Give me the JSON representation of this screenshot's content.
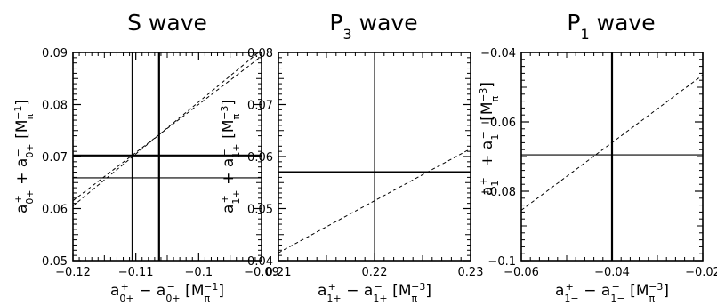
{
  "chart_data": [
    {
      "type": "line",
      "title": "S wave",
      "xlabel": "a0+⁺ − a0+⁻ [Mπ⁻¹]",
      "ylabel": "a0+⁺ + a0+⁻ [Mπ⁻¹]",
      "xlim": [
        -0.12,
        -0.09
      ],
      "ylim": [
        0.05,
        0.09
      ],
      "xticks": [
        -0.12,
        -0.11,
        -0.1,
        -0.09
      ],
      "xtick_labels": [
        "−0.12",
        "−0.11",
        "−0.1",
        "−0.09"
      ],
      "yticks": [
        0.05,
        0.06,
        0.07,
        0.08,
        0.09
      ],
      "ytick_labels": [
        "0.05",
        "0.06",
        "0.07",
        "0.08",
        "0.09"
      ],
      "vlines": [
        {
          "x": -0.1106,
          "style": "thin"
        },
        {
          "x": -0.1063,
          "style": "thick"
        }
      ],
      "hlines": [
        {
          "y": 0.0702,
          "style": "thick"
        },
        {
          "y": 0.0659,
          "style": "thin"
        }
      ],
      "dashed": [
        {
          "x": [
            -0.12,
            -0.09
          ],
          "y": [
            0.0615,
            0.0893
          ]
        },
        {
          "x": [
            -0.12,
            -0.0905
          ],
          "y": [
            0.0605,
            0.09
          ]
        }
      ]
    },
    {
      "type": "line",
      "title": "P3 wave",
      "xlabel": "a1+⁺ − a1+⁻ [Mπ⁻³]",
      "ylabel": "a1+⁺ + a1+⁻ [Mπ⁻³]",
      "xlim": [
        0.21,
        0.23
      ],
      "ylim": [
        0.04,
        0.08
      ],
      "xticks": [
        0.21,
        0.22,
        0.23
      ],
      "xtick_labels": [
        "0.21",
        "0.22",
        "0.23"
      ],
      "yticks": [
        0.04,
        0.05,
        0.06,
        0.07,
        0.08
      ],
      "ytick_labels": [
        "0.04",
        "0.05",
        "0.06",
        "0.07",
        "0.08"
      ],
      "vlines": [
        {
          "x": 0.22,
          "style": "thin"
        }
      ],
      "hlines": [
        {
          "y": 0.057,
          "style": "thick"
        }
      ],
      "dashed": [
        {
          "x": [
            0.21,
            0.23
          ],
          "y": [
            0.0415,
            0.0615
          ]
        }
      ]
    },
    {
      "type": "line",
      "title": "P1 wave",
      "xlabel": "a1−⁺ − a1−⁻ [Mπ⁻³]",
      "ylabel": "a1−⁺ + a1−⁻ [Mπ⁻³]",
      "xlim": [
        -0.06,
        -0.02
      ],
      "ylim": [
        -0.1,
        -0.04
      ],
      "xticks": [
        -0.06,
        -0.04,
        -0.02
      ],
      "xtick_labels": [
        "−0.06",
        "−0.04",
        "−0.02"
      ],
      "yticks": [
        -0.1,
        -0.08,
        -0.06,
        -0.04
      ],
      "ytick_labels": [
        "−0.1",
        "−0.08",
        "−0.06",
        "−0.04"
      ],
      "vlines": [
        {
          "x": -0.04,
          "style": "thick"
        }
      ],
      "hlines": [
        {
          "y": -0.0695,
          "style": "thin"
        }
      ],
      "dashed": [
        {
          "x": [
            -0.06,
            -0.02
          ],
          "y": [
            -0.0855,
            -0.0465
          ]
        }
      ]
    }
  ]
}
